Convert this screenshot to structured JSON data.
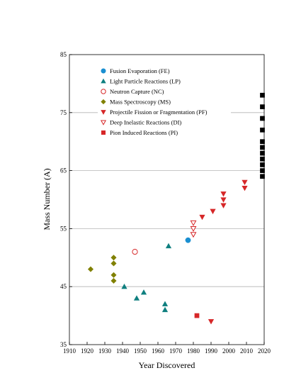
{
  "chart_data": {
    "type": "scatter",
    "title": "",
    "xlabel": "Year Discovered",
    "ylabel": "Mass Number (A)",
    "xlim": [
      1910,
      2020
    ],
    "ylim": [
      35,
      85
    ],
    "x_ticks": [
      1910,
      1920,
      1930,
      1940,
      1950,
      1960,
      1970,
      1980,
      1990,
      2000,
      2010,
      2020
    ],
    "y_ticks": [
      35,
      45,
      55,
      65,
      75,
      85
    ],
    "gridlines_y": [
      45,
      55,
      65,
      75
    ],
    "legend_position": "top-left",
    "series": [
      {
        "name": "Fusion Evaporation (FE)",
        "marker": "circle",
        "color": "#1a8fd1",
        "filled": true,
        "points": [
          [
            1977,
            53
          ]
        ]
      },
      {
        "name": "Light Particle Reactions (LP)",
        "marker": "triangle-up",
        "color": "#0f7f7f",
        "filled": true,
        "points": [
          [
            1941,
            45
          ],
          [
            1948,
            43
          ],
          [
            1952,
            44
          ],
          [
            1964,
            42
          ],
          [
            1964,
            41
          ],
          [
            1966,
            52
          ]
        ]
      },
      {
        "name": "Neutron Capture (NC)",
        "marker": "circle",
        "color": "#d62728",
        "filled": false,
        "points": [
          [
            1947,
            51
          ]
        ]
      },
      {
        "name": "Mass Spectroscopy (MS)",
        "marker": "diamond",
        "color": "#808000",
        "filled": true,
        "points": [
          [
            1922,
            48
          ],
          [
            1935,
            50
          ],
          [
            1935,
            49
          ],
          [
            1935,
            47
          ],
          [
            1935,
            46
          ]
        ]
      },
      {
        "name": "Projectile Fission or Fragmentation (PF)",
        "marker": "triangle-down",
        "color": "#d62728",
        "filled": true,
        "points": [
          [
            1985,
            57
          ],
          [
            1991,
            58
          ],
          [
            1997,
            61
          ],
          [
            1997,
            60
          ],
          [
            1997,
            59
          ],
          [
            2009,
            63
          ],
          [
            2009,
            62
          ],
          [
            1990,
            39
          ]
        ]
      },
      {
        "name": "Deep Inelastic Reactions (DI)",
        "marker": "triangle-down",
        "color": "#d62728",
        "filled": false,
        "points": [
          [
            1980,
            56
          ],
          [
            1980,
            55
          ],
          [
            1980,
            54
          ]
        ]
      },
      {
        "name": "Pion Induced Reactions (PI)",
        "marker": "square",
        "color": "#d62728",
        "filled": true,
        "points": [
          [
            1982,
            40
          ]
        ]
      },
      {
        "name": "",
        "marker": "square",
        "color": "#000000",
        "filled": true,
        "points": [
          [
            2019,
            78
          ],
          [
            2019,
            76
          ],
          [
            2019,
            74
          ],
          [
            2019,
            72
          ],
          [
            2019,
            70
          ],
          [
            2019,
            69
          ],
          [
            2019,
            68
          ],
          [
            2019,
            67
          ],
          [
            2019,
            66
          ],
          [
            2019,
            65
          ],
          [
            2019,
            64
          ]
        ]
      }
    ]
  }
}
